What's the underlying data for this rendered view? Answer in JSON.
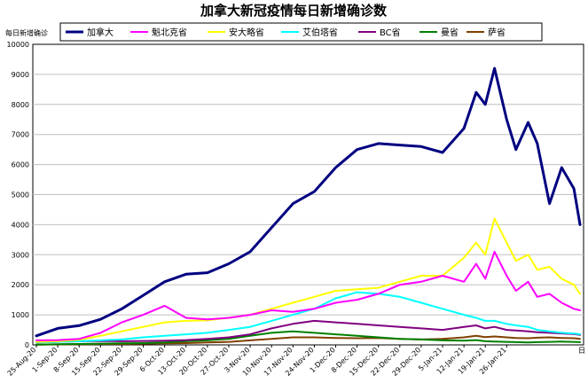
{
  "chart_data": {
    "type": "line",
    "title": "加拿大新冠疫情每日新增确诊数",
    "ylabel": "每日新增确诊",
    "xlabel": "",
    "ylim": [
      0,
      10000
    ],
    "yticks": [
      0,
      1000,
      2000,
      3000,
      4000,
      5000,
      6000,
      7000,
      8000,
      9000,
      10000
    ],
    "xticks": [
      "25-Aug-20",
      "1-Sep-20",
      "8-Sep-20",
      "15-Sep-20",
      "22-Sep-20",
      "29-Sep-20",
      "6-Oct-20",
      "13-Oct-20",
      "20-Oct-20",
      "27-Oct-20",
      "3-Nov-20",
      "10-Nov-20",
      "17-Nov-20",
      "24-Nov-20",
      "1-Dec-20",
      "8-Dec-20",
      "15-Dec-20",
      "22-Dec-20",
      "29-Dec-20",
      "5-Jan-21",
      "12-Jan-21",
      "19-Jan-21",
      "26-Jan-21"
    ],
    "x_trailing_label": "日",
    "grid": true,
    "legend_position": "top",
    "series": [
      {
        "name": "加拿大",
        "color": "#000080",
        "values": [
          [
            0,
            300
          ],
          [
            7,
            550
          ],
          [
            14,
            640
          ],
          [
            21,
            850
          ],
          [
            28,
            1200
          ],
          [
            35,
            1650
          ],
          [
            42,
            2100
          ],
          [
            49,
            2350
          ],
          [
            56,
            2400
          ],
          [
            63,
            2700
          ],
          [
            70,
            3100
          ],
          [
            77,
            3900
          ],
          [
            84,
            4700
          ],
          [
            91,
            5100
          ],
          [
            98,
            5900
          ],
          [
            105,
            6500
          ],
          [
            112,
            6700
          ],
          [
            119,
            6650
          ],
          [
            126,
            6600
          ],
          [
            133,
            6400
          ],
          [
            140,
            7200
          ],
          [
            144,
            8400
          ],
          [
            147,
            8000
          ],
          [
            150,
            9200
          ],
          [
            154,
            7500
          ],
          [
            157,
            6500
          ],
          [
            161,
            7400
          ],
          [
            164,
            6700
          ],
          [
            168,
            4700
          ],
          [
            172,
            5900
          ],
          [
            176,
            5200
          ],
          [
            178,
            4000
          ]
        ]
      },
      {
        "name": "魁北克省",
        "color": "#ff00ff",
        "values": [
          [
            0,
            150
          ],
          [
            7,
            160
          ],
          [
            14,
            200
          ],
          [
            21,
            400
          ],
          [
            28,
            750
          ],
          [
            35,
            1000
          ],
          [
            42,
            1300
          ],
          [
            49,
            900
          ],
          [
            56,
            850
          ],
          [
            63,
            900
          ],
          [
            70,
            1000
          ],
          [
            77,
            1150
          ],
          [
            84,
            1100
          ],
          [
            91,
            1200
          ],
          [
            98,
            1400
          ],
          [
            105,
            1500
          ],
          [
            112,
            1700
          ],
          [
            119,
            2000
          ],
          [
            126,
            2100
          ],
          [
            133,
            2300
          ],
          [
            140,
            2100
          ],
          [
            144,
            2700
          ],
          [
            147,
            2200
          ],
          [
            150,
            3100
          ],
          [
            154,
            2300
          ],
          [
            157,
            1800
          ],
          [
            161,
            2100
          ],
          [
            164,
            1600
          ],
          [
            168,
            1700
          ],
          [
            172,
            1400
          ],
          [
            176,
            1200
          ],
          [
            178,
            1150
          ]
        ]
      },
      {
        "name": "安大略省",
        "color": "#ffff00",
        "values": [
          [
            0,
            100
          ],
          [
            7,
            120
          ],
          [
            14,
            170
          ],
          [
            21,
            300
          ],
          [
            28,
            450
          ],
          [
            35,
            600
          ],
          [
            42,
            750
          ],
          [
            49,
            800
          ],
          [
            56,
            820
          ],
          [
            63,
            900
          ],
          [
            70,
            1000
          ],
          [
            77,
            1200
          ],
          [
            84,
            1400
          ],
          [
            91,
            1600
          ],
          [
            98,
            1800
          ],
          [
            105,
            1850
          ],
          [
            112,
            1900
          ],
          [
            119,
            2100
          ],
          [
            126,
            2300
          ],
          [
            133,
            2300
          ],
          [
            140,
            2900
          ],
          [
            144,
            3400
          ],
          [
            147,
            3000
          ],
          [
            150,
            4200
          ],
          [
            154,
            3400
          ],
          [
            157,
            2800
          ],
          [
            161,
            3000
          ],
          [
            164,
            2500
          ],
          [
            168,
            2600
          ],
          [
            172,
            2200
          ],
          [
            176,
            2000
          ],
          [
            178,
            1700
          ]
        ]
      },
      {
        "name": "艾伯塔省",
        "color": "#00ffff",
        "values": [
          [
            0,
            80
          ],
          [
            7,
            100
          ],
          [
            14,
            120
          ],
          [
            21,
            150
          ],
          [
            28,
            180
          ],
          [
            35,
            250
          ],
          [
            42,
            300
          ],
          [
            49,
            350
          ],
          [
            56,
            400
          ],
          [
            63,
            500
          ],
          [
            70,
            600
          ],
          [
            77,
            800
          ],
          [
            84,
            1000
          ],
          [
            91,
            1200
          ],
          [
            98,
            1550
          ],
          [
            105,
            1750
          ],
          [
            112,
            1700
          ],
          [
            119,
            1600
          ],
          [
            126,
            1400
          ],
          [
            133,
            1200
          ],
          [
            140,
            1000
          ],
          [
            144,
            900
          ],
          [
            147,
            800
          ],
          [
            150,
            800
          ],
          [
            154,
            700
          ],
          [
            157,
            650
          ],
          [
            161,
            600
          ],
          [
            164,
            500
          ],
          [
            168,
            450
          ],
          [
            172,
            400
          ],
          [
            176,
            380
          ],
          [
            178,
            350
          ]
        ]
      },
      {
        "name": "BC省",
        "color": "#800080",
        "values": [
          [
            0,
            80
          ],
          [
            7,
            100
          ],
          [
            14,
            120
          ],
          [
            21,
            130
          ],
          [
            28,
            120
          ],
          [
            35,
            130
          ],
          [
            42,
            140
          ],
          [
            49,
            160
          ],
          [
            56,
            200
          ],
          [
            63,
            250
          ],
          [
            70,
            350
          ],
          [
            77,
            550
          ],
          [
            84,
            700
          ],
          [
            91,
            800
          ],
          [
            98,
            750
          ],
          [
            105,
            700
          ],
          [
            112,
            650
          ],
          [
            119,
            600
          ],
          [
            126,
            550
          ],
          [
            133,
            500
          ],
          [
            140,
            600
          ],
          [
            144,
            650
          ],
          [
            147,
            550
          ],
          [
            150,
            600
          ],
          [
            154,
            500
          ],
          [
            157,
            480
          ],
          [
            161,
            450
          ],
          [
            164,
            420
          ],
          [
            168,
            400
          ],
          [
            172,
            380
          ],
          [
            176,
            360
          ],
          [
            178,
            330
          ]
        ]
      },
      {
        "name": "曼省",
        "color": "#008000",
        "values": [
          [
            0,
            10
          ],
          [
            7,
            20
          ],
          [
            14,
            30
          ],
          [
            21,
            40
          ],
          [
            28,
            50
          ],
          [
            35,
            60
          ],
          [
            42,
            80
          ],
          [
            49,
            120
          ],
          [
            56,
            150
          ],
          [
            63,
            200
          ],
          [
            70,
            300
          ],
          [
            77,
            400
          ],
          [
            84,
            450
          ],
          [
            91,
            400
          ],
          [
            98,
            350
          ],
          [
            105,
            300
          ],
          [
            112,
            250
          ],
          [
            119,
            200
          ],
          [
            126,
            180
          ],
          [
            133,
            150
          ],
          [
            140,
            140
          ],
          [
            144,
            160
          ],
          [
            147,
            120
          ],
          [
            150,
            110
          ],
          [
            154,
            100
          ],
          [
            157,
            90
          ],
          [
            161,
            80
          ],
          [
            164,
            90
          ],
          [
            168,
            100
          ],
          [
            172,
            110
          ],
          [
            176,
            100
          ],
          [
            178,
            90
          ]
        ]
      },
      {
        "name": "萨省",
        "color": "#804000",
        "values": [
          [
            0,
            10
          ],
          [
            7,
            15
          ],
          [
            14,
            20
          ],
          [
            21,
            30
          ],
          [
            28,
            30
          ],
          [
            35,
            40
          ],
          [
            42,
            50
          ],
          [
            49,
            60
          ],
          [
            56,
            80
          ],
          [
            63,
            100
          ],
          [
            70,
            150
          ],
          [
            77,
            200
          ],
          [
            84,
            250
          ],
          [
            91,
            250
          ],
          [
            98,
            230
          ],
          [
            105,
            220
          ],
          [
            112,
            230
          ],
          [
            119,
            200
          ],
          [
            126,
            180
          ],
          [
            133,
            200
          ],
          [
            140,
            250
          ],
          [
            144,
            300
          ],
          [
            147,
            260
          ],
          [
            150,
            280
          ],
          [
            154,
            250
          ],
          [
            157,
            230
          ],
          [
            161,
            220
          ],
          [
            164,
            240
          ],
          [
            168,
            250
          ],
          [
            172,
            230
          ],
          [
            176,
            220
          ],
          [
            178,
            200
          ]
        ]
      }
    ]
  }
}
